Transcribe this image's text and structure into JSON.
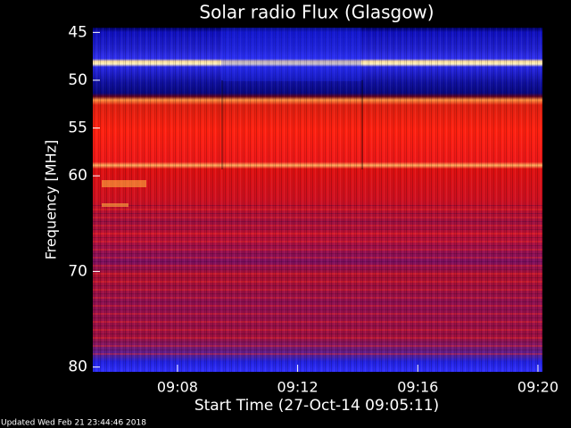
{
  "chart_data": {
    "type": "spectrogram",
    "title": "Solar radio Flux (Glasgow)",
    "xlabel": "Start Time (27-Oct-14 09:05:11)",
    "ylabel": "Frequency [MHz]",
    "footer": "Updated Wed Feb 21 23:44:46 2018",
    "xlim": [
      545.18,
      560.15
    ],
    "xticks": [
      {
        "value": 548,
        "label": "09:08"
      },
      {
        "value": 552,
        "label": "09:12"
      },
      {
        "value": 556,
        "label": "09:16"
      },
      {
        "value": 560,
        "label": "09:20"
      }
    ],
    "ylim": [
      44.5,
      80.5
    ],
    "yticks": [
      45,
      50,
      55,
      60,
      70,
      80
    ]
  }
}
